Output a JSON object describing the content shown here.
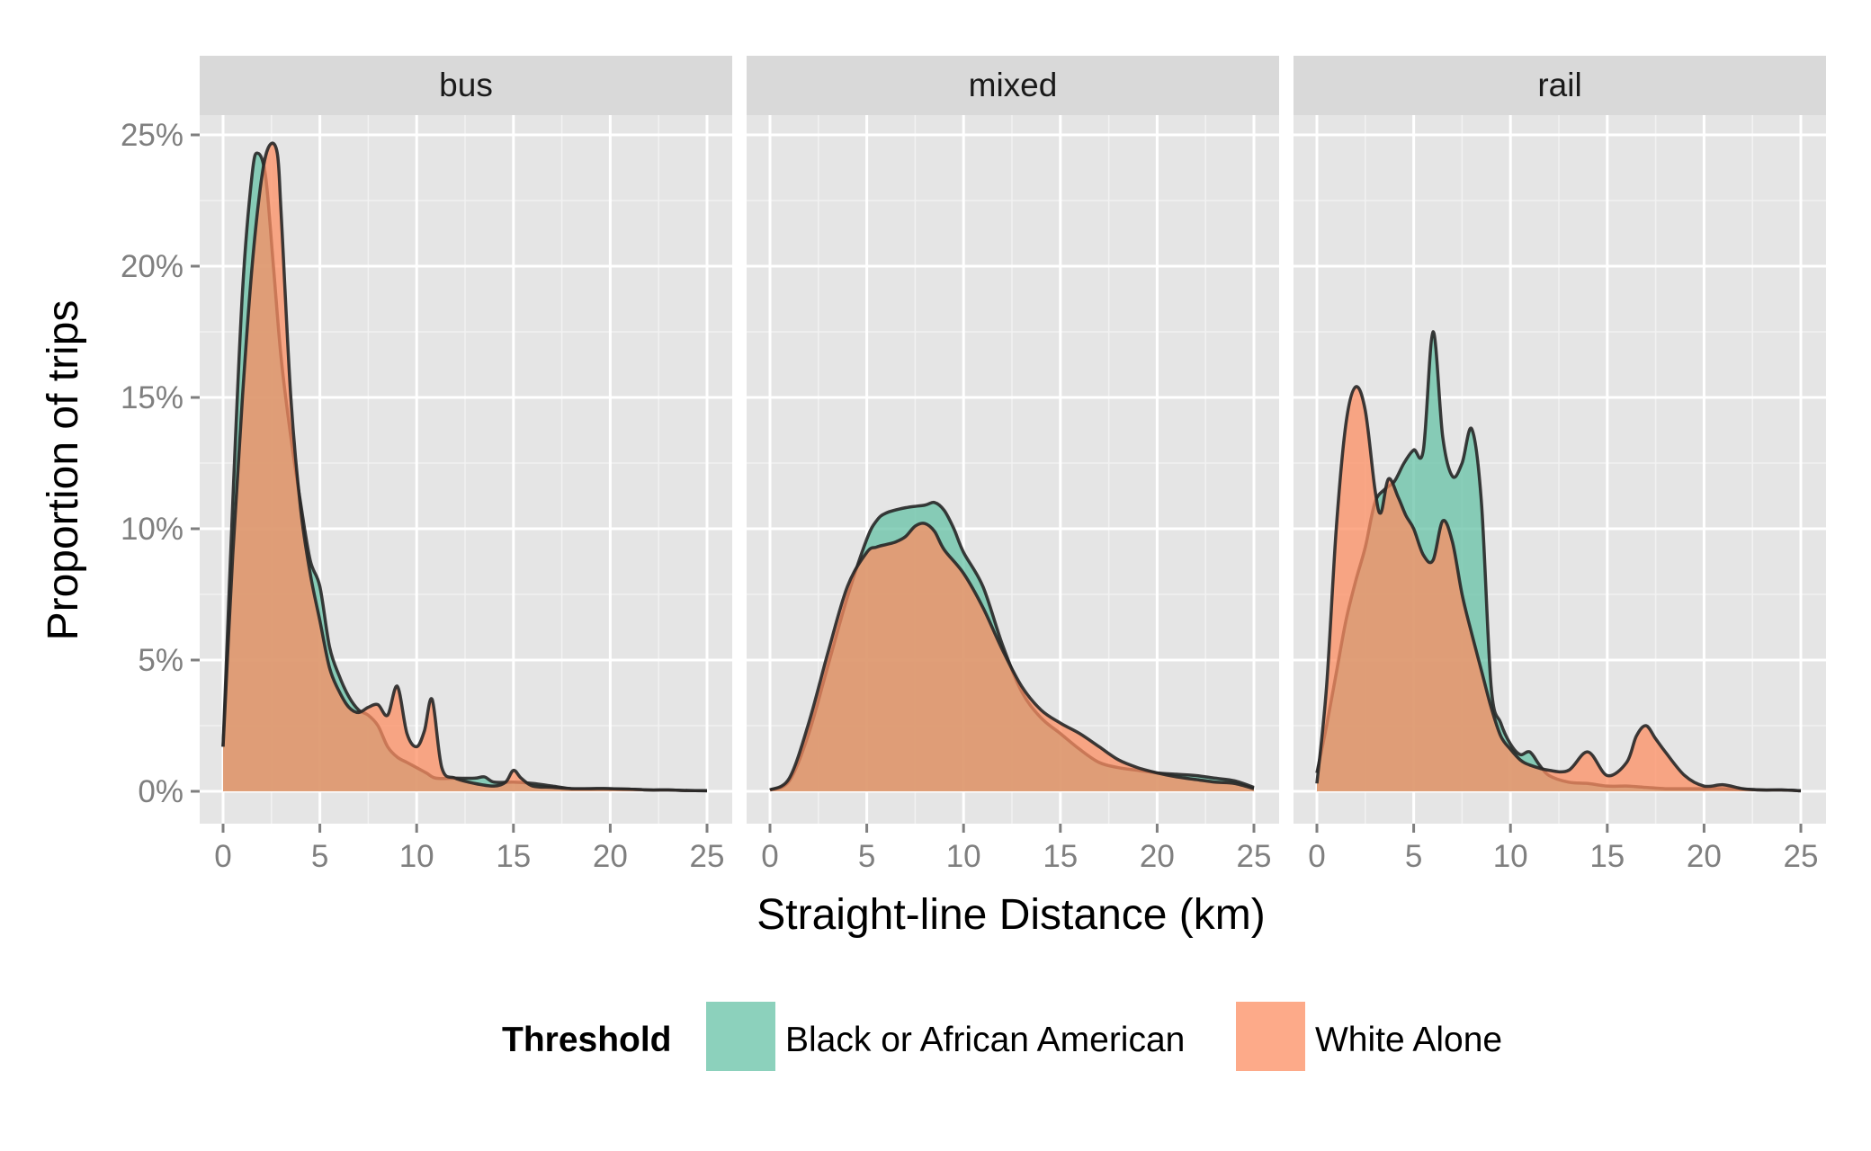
{
  "chart_data": {
    "type": "area",
    "title": "",
    "xlabel": "Straight-line Distance (km)",
    "ylabel": "Proportion of trips",
    "xlim": [
      0,
      25
    ],
    "ylim": [
      0,
      25
    ],
    "x_ticks": [
      0,
      5,
      10,
      15,
      20,
      25
    ],
    "y_ticks": [
      0,
      5,
      10,
      15,
      20,
      25
    ],
    "y_tick_labels": [
      "0%",
      "5%",
      "10%",
      "15%",
      "20%",
      "25%"
    ],
    "x_tick_labels": [
      "0",
      "5",
      "10",
      "15",
      "20",
      "25"
    ],
    "grid": true,
    "legend": {
      "title": "Threshold",
      "position": "bottom",
      "entries": [
        {
          "name": "Black or African American",
          "color": "#66c2a5"
        },
        {
          "name": "White Alone",
          "color": "#fc8d62"
        }
      ]
    },
    "panels": [
      {
        "name": "bus",
        "series": [
          {
            "name": "Black or African American",
            "x": [
              0,
              0.5,
              1,
              1.5,
              1.8,
              2.2,
              2.6,
              3,
              3.5,
              4,
              4.5,
              5,
              5.5,
              6,
              6.5,
              7,
              7.5,
              8,
              8.5,
              9,
              9.5,
              10,
              10.5,
              11,
              12,
              13,
              13.5,
              14,
              15,
              16,
              17,
              18,
              19,
              20,
              21,
              22,
              23,
              24,
              25
            ],
            "y": [
              1.7,
              11,
              19,
              23.5,
              24.3,
              23.4,
              20,
              16.5,
              13.5,
              11,
              8.8,
              7.8,
              5.5,
              4.4,
              3.6,
              3.1,
              2.9,
              2.5,
              1.7,
              1.3,
              1.1,
              0.9,
              0.7,
              0.5,
              0.5,
              0.5,
              0.55,
              0.35,
              0.35,
              0.3,
              0.2,
              0.1,
              0.1,
              0.1,
              0.08,
              0.05,
              0.05,
              0.03,
              0.02
            ]
          },
          {
            "name": "White Alone",
            "x": [
              0,
              0.5,
              1,
              1.5,
              2,
              2.4,
              2.8,
              3,
              3.5,
              4,
              4.5,
              5,
              5.5,
              6,
              6.5,
              7,
              7.5,
              8,
              8.5,
              9,
              9.5,
              10,
              10.4,
              10.8,
              11.3,
              12,
              13,
              14,
              14.6,
              15,
              15.4,
              16,
              17,
              18,
              19,
              20,
              21,
              22,
              23,
              24,
              25
            ],
            "y": [
              1.7,
              9,
              15,
              20,
              23.4,
              24.6,
              24.3,
              22,
              15,
              10.8,
              8.3,
              6.5,
              4.7,
              3.8,
              3.2,
              3,
              3.2,
              3.3,
              2.9,
              4.0,
              2.2,
              1.7,
              2.3,
              3.5,
              0.9,
              0.5,
              0.3,
              0.2,
              0.35,
              0.8,
              0.5,
              0.2,
              0.15,
              0.1,
              0.1,
              0.1,
              0.08,
              0.05,
              0.05,
              0.03,
              0.02
            ]
          }
        ]
      },
      {
        "name": "mixed",
        "series": [
          {
            "name": "Black or African American",
            "x": [
              0,
              1,
              2,
              3,
              4,
              5,
              5.5,
              6,
              7,
              8,
              8.5,
              9,
              9.5,
              10,
              11,
              12,
              13,
              14,
              15,
              16,
              17,
              18,
              19,
              20,
              21,
              22,
              23,
              24,
              25
            ],
            "y": [
              0.05,
              0.4,
              2.2,
              4.8,
              7.4,
              9.6,
              10.3,
              10.6,
              10.8,
              10.9,
              11.0,
              10.7,
              10.0,
              9.1,
              7.8,
              5.6,
              3.8,
              2.8,
              2.2,
              1.6,
              1.1,
              0.9,
              0.8,
              0.7,
              0.65,
              0.6,
              0.5,
              0.4,
              0.15
            ]
          },
          {
            "name": "White Alone",
            "x": [
              0,
              1,
              2,
              3,
              4,
              5,
              5.5,
              6,
              6.5,
              7,
              7.5,
              8,
              8.5,
              9,
              10,
              11,
              12,
              13,
              14,
              15,
              16,
              17,
              18,
              19,
              20,
              21,
              22,
              23,
              24,
              25
            ],
            "y": [
              0.05,
              0.5,
              2.6,
              5.3,
              7.8,
              9.1,
              9.3,
              9.4,
              9.5,
              9.7,
              10.1,
              10.2,
              9.9,
              9.2,
              8.3,
              7.0,
              5.4,
              4.0,
              3.1,
              2.6,
              2.2,
              1.7,
              1.2,
              0.9,
              0.7,
              0.55,
              0.45,
              0.35,
              0.3,
              0.1
            ]
          }
        ]
      },
      {
        "name": "rail",
        "series": [
          {
            "name": "Black or African American",
            "x": [
              0,
              0.5,
              1,
              1.5,
              2,
              2.5,
              3,
              3.5,
              4,
              4.5,
              5,
              5.5,
              6,
              6.5,
              7,
              7.5,
              8,
              8.5,
              9,
              9.5,
              10,
              10.5,
              11,
              11.5,
              12,
              13,
              14,
              15,
              16,
              17,
              18,
              19,
              20,
              21,
              22,
              23,
              24,
              25
            ],
            "y": [
              0.7,
              2.5,
              4.5,
              6.5,
              8,
              9.3,
              11,
              11.5,
              11.8,
              12.5,
              13,
              13,
              17.5,
              13.5,
              12,
              12.5,
              13.8,
              11,
              4,
              2.6,
              1.8,
              1.4,
              1.5,
              1.0,
              0.6,
              0.35,
              0.3,
              0.2,
              0.2,
              0.15,
              0.1,
              0.1,
              0.1,
              0.1,
              0.08,
              0.05,
              0.05,
              0.02
            ]
          },
          {
            "name": "White Alone",
            "x": [
              0,
              0.5,
              1,
              1.5,
              2,
              2.5,
              3,
              3.3,
              3.7,
              4.2,
              4.6,
              5,
              5.5,
              6,
              6.5,
              7,
              7.5,
              8,
              8.5,
              9,
              9.5,
              10,
              10.5,
              11,
              12,
              13,
              14,
              15,
              16,
              16.5,
              17,
              17.5,
              18,
              19,
              20,
              21,
              22,
              23,
              24,
              25
            ],
            "y": [
              0.3,
              4,
              10,
              14,
              15.4,
              14.5,
              11.5,
              10.6,
              11.9,
              11.2,
              10.5,
              10.0,
              9.0,
              8.8,
              10.3,
              9.5,
              7.5,
              6.0,
              4.6,
              3.2,
              2.1,
              1.6,
              1.2,
              1.0,
              0.8,
              0.8,
              1.5,
              0.6,
              1.1,
              2.1,
              2.5,
              2.0,
              1.5,
              0.6,
              0.2,
              0.25,
              0.1,
              0.05,
              0.05,
              0.02
            ]
          }
        ]
      }
    ]
  }
}
